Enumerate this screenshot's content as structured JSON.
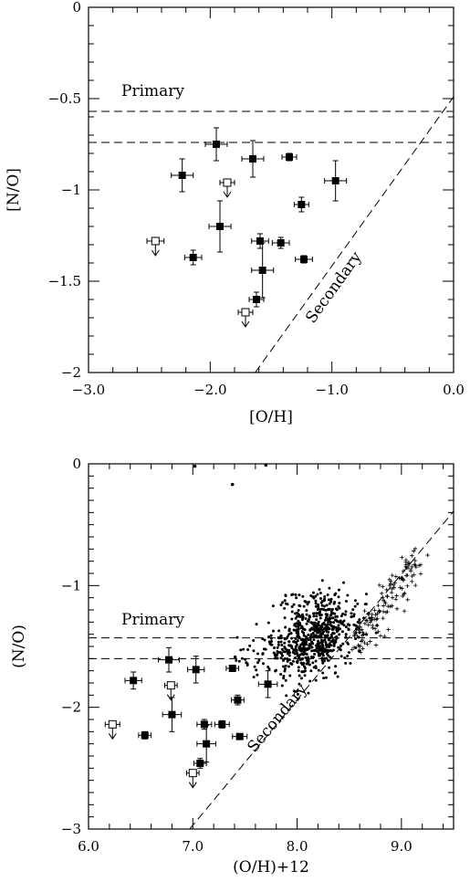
{
  "chart_data": [
    {
      "type": "scatter",
      "xlabel": "[O/H]",
      "ylabel": "[N/O]",
      "xlim": [
        -3.0,
        0.0
      ],
      "ylim": [
        -2.0,
        0.0
      ],
      "xticks": [
        -3.0,
        -2.0,
        -1.0,
        0.0
      ],
      "xtick_labels": [
        "−3.0",
        "−2.0",
        "−1.0",
        "0.0"
      ],
      "yticks": [
        0,
        -0.5,
        -1,
        -1.5,
        -2
      ],
      "ytick_labels": [
        "0",
        "−0.5",
        "−1",
        "−1.5",
        "−2"
      ],
      "grid": false,
      "annotations": {
        "primary": "Primary",
        "secondary": "Secondary"
      },
      "primary_levels": [
        -0.57,
        -0.74
      ],
      "secondary_line": {
        "x": [
          -1.63,
          0.0
        ],
        "y": [
          -2.0,
          -0.49
        ]
      },
      "detections": [
        {
          "x": -2.23,
          "y": -0.92,
          "xerr": 0.09,
          "yerr": 0.09
        },
        {
          "x": -1.95,
          "y": -0.75,
          "xerr": 0.09,
          "yerr": 0.09
        },
        {
          "x": -1.65,
          "y": -0.83,
          "xerr": 0.09,
          "yerr": 0.1
        },
        {
          "x": -1.35,
          "y": -0.82,
          "xerr": 0.06,
          "yerr": 0.02
        },
        {
          "x": -0.97,
          "y": -0.95,
          "xerr": 0.09,
          "yerr": 0.11
        },
        {
          "x": -1.25,
          "y": -1.08,
          "xerr": 0.06,
          "yerr": 0.04
        },
        {
          "x": -1.92,
          "y": -1.2,
          "xerr": 0.09,
          "yerr": 0.14
        },
        {
          "x": -1.59,
          "y": -1.28,
          "xerr": 0.07,
          "yerr": 0.04
        },
        {
          "x": -1.42,
          "y": -1.29,
          "xerr": 0.07,
          "yerr": 0.03
        },
        {
          "x": -2.14,
          "y": -1.37,
          "xerr": 0.07,
          "yerr": 0.04
        },
        {
          "x": -1.23,
          "y": -1.38,
          "xerr": 0.07,
          "yerr": 0.02
        },
        {
          "x": -1.57,
          "y": -1.44,
          "xerr": 0.09,
          "yerr": 0.15
        },
        {
          "x": -1.62,
          "y": -1.6,
          "xerr": 0.06,
          "yerr": 0.04
        }
      ],
      "upper_limits": [
        {
          "x": -2.45,
          "y": -1.28,
          "xerr": 0.07
        },
        {
          "x": -1.86,
          "y": -0.96,
          "xerr": 0.06
        },
        {
          "x": -1.71,
          "y": -1.67,
          "xerr": 0.06
        }
      ]
    },
    {
      "type": "scatter",
      "xlabel": "(O/H)+12",
      "ylabel": "(N/O)",
      "xlim": [
        6.0,
        9.5
      ],
      "ylim": [
        -3.0,
        0.0
      ],
      "xticks": [
        6.0,
        7.0,
        8.0,
        9.0
      ],
      "xtick_labels": [
        "6.0",
        "7.0",
        "8.0",
        "9.0"
      ],
      "yticks": [
        0,
        -1,
        -2,
        -3
      ],
      "ytick_labels": [
        "0",
        "−1",
        "−2",
        "−3"
      ],
      "grid": false,
      "annotations": {
        "primary": "Primary",
        "secondary": "Secondary"
      },
      "primary_levels": [
        -1.43,
        -1.6
      ],
      "secondary_line": {
        "x": [
          6.97,
          9.5
        ],
        "y": [
          -3.0,
          -0.39
        ]
      },
      "detections": [
        {
          "x": 6.43,
          "y": -1.78,
          "xerr": 0.08,
          "yerr": 0.07
        },
        {
          "x": 6.54,
          "y": -2.23,
          "xerr": 0.06,
          "yerr": 0.03
        },
        {
          "x": 6.77,
          "y": -1.61,
          "xerr": 0.1,
          "yerr": 0.1
        },
        {
          "x": 6.8,
          "y": -2.06,
          "xerr": 0.09,
          "yerr": 0.14
        },
        {
          "x": 7.03,
          "y": -1.69,
          "xerr": 0.08,
          "yerr": 0.11
        },
        {
          "x": 7.07,
          "y": -2.46,
          "xerr": 0.06,
          "yerr": 0.04
        },
        {
          "x": 7.11,
          "y": -2.14,
          "xerr": 0.07,
          "yerr": 0.04
        },
        {
          "x": 7.13,
          "y": -2.3,
          "xerr": 0.09,
          "yerr": 0.15
        },
        {
          "x": 7.28,
          "y": -2.14,
          "xerr": 0.07,
          "yerr": 0.03
        },
        {
          "x": 7.38,
          "y": -1.68,
          "xerr": 0.06,
          "yerr": 0.02
        },
        {
          "x": 7.43,
          "y": -1.94,
          "xerr": 0.06,
          "yerr": 0.04
        },
        {
          "x": 7.45,
          "y": -2.24,
          "xerr": 0.07,
          "yerr": 0.02
        },
        {
          "x": 7.72,
          "y": -1.81,
          "xerr": 0.09,
          "yerr": 0.11
        }
      ],
      "upper_limits": [
        {
          "x": 6.23,
          "y": -2.14,
          "xerr": 0.07
        },
        {
          "x": 6.79,
          "y": -1.82,
          "xerr": 0.06
        },
        {
          "x": 7.0,
          "y": -2.54,
          "xerr": 0.06
        }
      ],
      "comparison_dots": {
        "center": [
          8.17,
          -1.43
        ],
        "spread": [
          0.2,
          0.15
        ],
        "count": 700,
        "outliers": [
          {
            "x": 7.02,
            "y": -0.02
          },
          {
            "x": 7.38,
            "y": -0.17
          },
          {
            "x": 7.7,
            "y": -0.01
          }
        ]
      },
      "comparison_crosses": {
        "trend_x": [
          8.55,
          9.15
        ],
        "trend_y": [
          -1.5,
          -0.8
        ],
        "count": 140
      }
    }
  ]
}
